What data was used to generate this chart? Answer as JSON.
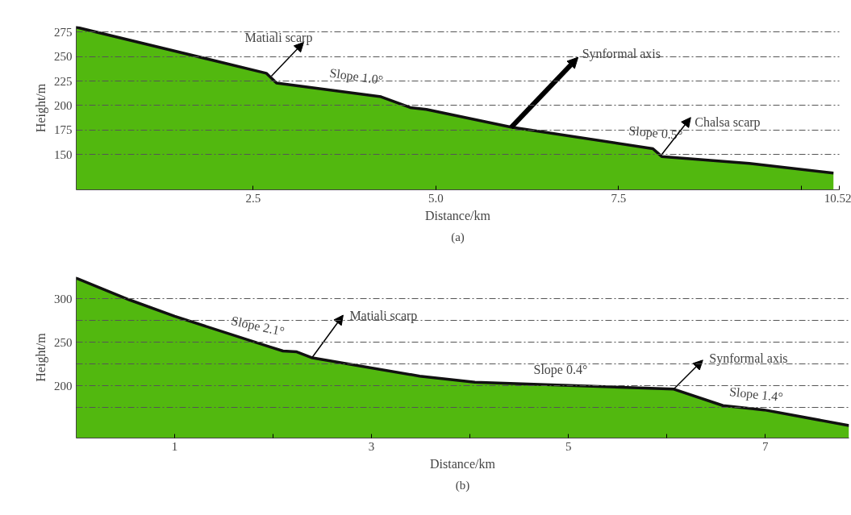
{
  "chart_data": [
    {
      "type": "area",
      "xlabel": "Distance/km",
      "ylabel": "Height/m",
      "grid": "y",
      "xlim": [
        0.08,
        10.52
      ],
      "ylim": [
        114,
        281
      ],
      "xticks": [
        2.5,
        {
          "value": 5.0,
          "label": "5.0"
        },
        7.5,
        {
          "value": 10.0,
          "label": null
        },
        10.52
      ],
      "yticks": [
        150,
        175,
        200,
        225,
        250,
        275
      ],
      "series": [
        {
          "color": "#52b80f",
          "x": [
            0.08,
            2.68,
            2.82,
            4.25,
            4.65,
            4.87,
            6.03,
            7.97,
            8.09,
            9.29,
            10.44
          ],
          "values": [
            280,
            233,
            223,
            209,
            198,
            196,
            178,
            156,
            148,
            141,
            131
          ]
        }
      ],
      "annotations": [
        {
          "text": "Matiali scarp",
          "x": 2.75,
          "y": 230
        },
        {
          "text": "Slope 1.0°",
          "x": 3.9,
          "y": 213
        },
        {
          "text": "Synformal axis",
          "x": 6.03,
          "y": 177.7
        },
        {
          "text": "Slope 0.5°",
          "x": 8.0,
          "y": 157
        },
        {
          "text": "Chalsa scarp",
          "x": 8.09,
          "y": 150
        },
        "(a)"
      ]
    },
    {
      "type": "area",
      "xlabel": "Distance/km",
      "ylabel": "Height/m",
      "grid": "y",
      "xlim": [
        0,
        7.85
      ],
      "ylim": [
        139.6,
        325.5
      ],
      "xticks": [
        1,
        {
          "value": 2,
          "label": null
        },
        3,
        {
          "value": 4,
          "label": null
        },
        5,
        {
          "value": 6,
          "label": null
        },
        7
      ],
      "yticks": [
        {
          "value": 175,
          "label": null
        },
        200,
        {
          "value": 225,
          "label": null
        },
        250,
        {
          "value": 275,
          "label": null
        },
        300
      ],
      "series": [
        {
          "color": "#52b80f",
          "x": [
            0,
            0.54,
            1.0,
            1.96,
            2.1,
            2.24,
            2.4,
            3.49,
            4.05,
            6.07,
            6.57,
            6.99,
            7.85
          ],
          "values": [
            324,
            299,
            280,
            245,
            240,
            239,
            232,
            211,
            204,
            196,
            177,
            172,
            154
          ]
        }
      ],
      "annotations": [
        {
          "text": "Slope 2.1°",
          "x": 1.83,
          "y": 250
        },
        {
          "text": "Matiali scarp",
          "x": 2.4,
          "y": 233
        },
        {
          "text": "Slope 0.4°",
          "x": 4.92,
          "y": 201
        },
        {
          "text": "Synformal axis",
          "x": 6.07,
          "y": 196
        },
        {
          "text": "Slope 1.4°",
          "x": 6.9,
          "y": 173
        },
        "(b)"
      ]
    }
  ]
}
